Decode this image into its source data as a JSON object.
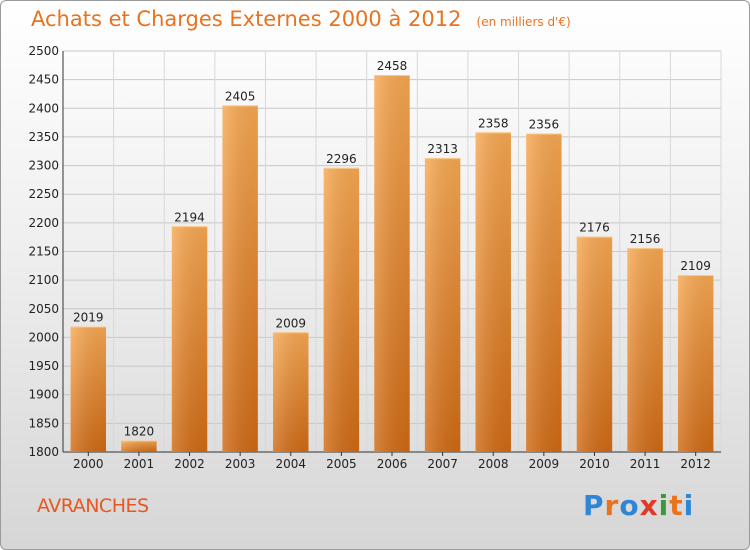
{
  "chart_data": {
    "type": "bar",
    "title": "Achats et Charges Externes 2000 à 2012",
    "unit": "(en milliers d'€)",
    "categories": [
      "2000",
      "2001",
      "2002",
      "2003",
      "2004",
      "2005",
      "2006",
      "2007",
      "2008",
      "2009",
      "2010",
      "2011",
      "2012"
    ],
    "values": [
      2019,
      1820,
      2194,
      2405,
      2009,
      2296,
      2458,
      2313,
      2358,
      2356,
      2176,
      2156,
      2109
    ],
    "ylim": [
      1800,
      2500
    ],
    "yticks": [
      1800,
      1850,
      1900,
      1950,
      2000,
      2050,
      2100,
      2150,
      2200,
      2250,
      2300,
      2350,
      2400,
      2450,
      2500
    ],
    "grid": true,
    "xlabel": "",
    "ylabel": "",
    "bar_color": "#f5a04a",
    "bar_color_dark": "#d8711a"
  },
  "footer": {
    "commune": "AVRANCHES",
    "brand": [
      "P",
      "r",
      "o",
      "x",
      "i",
      "t",
      "i"
    ],
    "brand_colors": [
      "#2f86d6",
      "#e8731f",
      "#2f86d6",
      "#e03a2a",
      "#3a9a3a",
      "#e8731f",
      "#2f86d6"
    ]
  }
}
